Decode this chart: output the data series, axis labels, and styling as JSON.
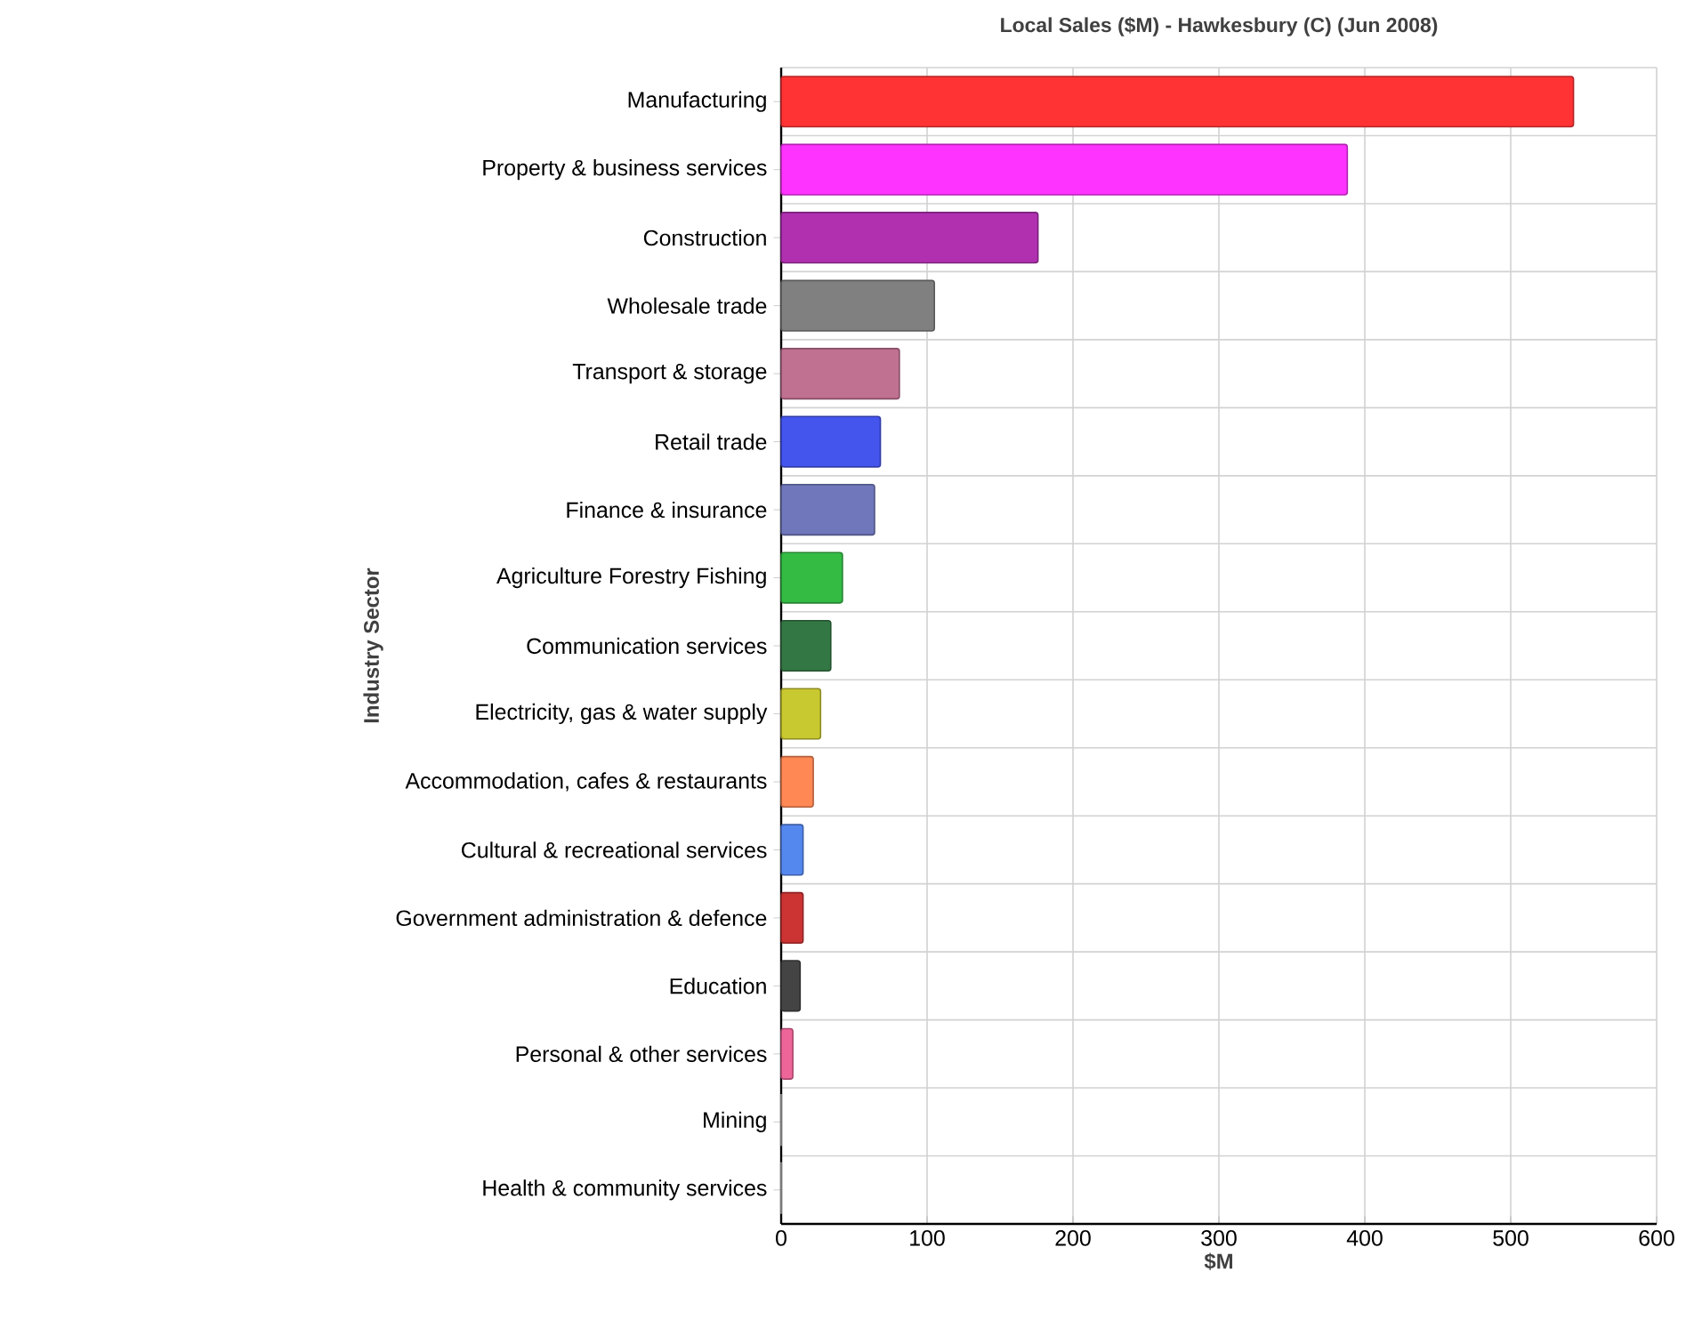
{
  "chart_data": {
    "type": "bar",
    "orientation": "horizontal",
    "title": "Local Sales ($M) - Hawkesbury (C) (Jun 2008)",
    "xlabel": "$M",
    "ylabel": "Industry Sector",
    "categories": [
      "Manufacturing",
      "Property & business services",
      "Construction",
      "Wholesale trade",
      "Transport & storage",
      "Retail trade",
      "Finance & insurance",
      "Agriculture Forestry Fishing",
      "Communication services",
      "Electricity, gas & water supply",
      "Accommodation, cafes & restaurants",
      "Cultural & recreational services",
      "Government administration & defence",
      "Education",
      "Personal & other services",
      "Mining",
      "Health & community services"
    ],
    "values": [
      543,
      388,
      176,
      105,
      81,
      68,
      64,
      42,
      34,
      27,
      22,
      15,
      15,
      13,
      8,
      0,
      0
    ],
    "colors": [
      "#ff3333",
      "#ff33ff",
      "#b030b0",
      "#808080",
      "#c07090",
      "#4455ee",
      "#7077bb",
      "#33bb44",
      "#337744",
      "#c8c830",
      "#ff8855",
      "#5588ee",
      "#cc3333",
      "#444444",
      "#ee6699",
      "#999999",
      "#999999"
    ],
    "xlim": [
      0,
      600
    ],
    "xticks": [
      0,
      100,
      200,
      300,
      400,
      500,
      600
    ],
    "grid": true
  }
}
